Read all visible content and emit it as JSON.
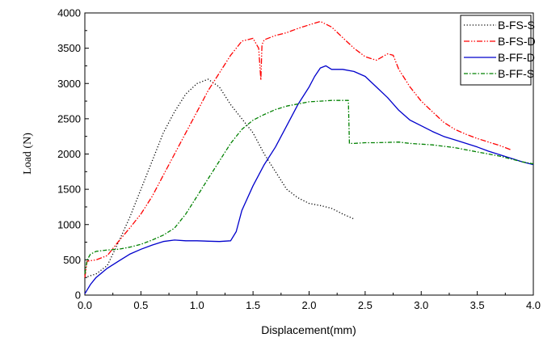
{
  "chart_data": {
    "type": "line",
    "xlabel": "Displacement(mm)",
    "ylabel": "Load (N)",
    "xlim": [
      0,
      4.0
    ],
    "ylim": [
      0,
      4000
    ],
    "x_ticks": [
      "0.0",
      "0.5",
      "1.0",
      "1.5",
      "2.0",
      "2.5",
      "3.0",
      "3.5",
      "4.0"
    ],
    "y_ticks": [
      "0",
      "500",
      "1000",
      "1500",
      "2000",
      "2500",
      "3000",
      "3500",
      "4000"
    ],
    "grid": false,
    "legend_position": "top-right",
    "series": [
      {
        "name": "B-FS-S",
        "color": "#000000",
        "dash": "1.2 2.4",
        "points": [
          [
            0.0,
            250
          ],
          [
            0.1,
            300
          ],
          [
            0.2,
            420
          ],
          [
            0.3,
            750
          ],
          [
            0.4,
            1100
          ],
          [
            0.5,
            1500
          ],
          [
            0.6,
            1900
          ],
          [
            0.7,
            2300
          ],
          [
            0.8,
            2600
          ],
          [
            0.9,
            2850
          ],
          [
            1.0,
            3000
          ],
          [
            1.1,
            3060
          ],
          [
            1.2,
            2950
          ],
          [
            1.3,
            2700
          ],
          [
            1.4,
            2500
          ],
          [
            1.5,
            2300
          ],
          [
            1.6,
            2000
          ],
          [
            1.7,
            1750
          ],
          [
            1.8,
            1500
          ],
          [
            1.9,
            1380
          ],
          [
            2.0,
            1300
          ],
          [
            2.1,
            1270
          ],
          [
            2.2,
            1230
          ],
          [
            2.3,
            1150
          ],
          [
            2.4,
            1080
          ]
        ]
      },
      {
        "name": "B-FS-D",
        "color": "#ff0000",
        "dash": "7 2 1.5 2 1.5 2",
        "points": [
          [
            0.0,
            250
          ],
          [
            0.02,
            480
          ],
          [
            0.1,
            500
          ],
          [
            0.2,
            560
          ],
          [
            0.3,
            760
          ],
          [
            0.4,
            950
          ],
          [
            0.5,
            1150
          ],
          [
            0.6,
            1400
          ],
          [
            0.7,
            1700
          ],
          [
            0.8,
            2000
          ],
          [
            0.9,
            2300
          ],
          [
            1.0,
            2600
          ],
          [
            1.1,
            2900
          ],
          [
            1.2,
            3150
          ],
          [
            1.3,
            3400
          ],
          [
            1.4,
            3600
          ],
          [
            1.5,
            3640
          ],
          [
            1.55,
            3500
          ],
          [
            1.57,
            3050
          ],
          [
            1.58,
            3550
          ],
          [
            1.6,
            3620
          ],
          [
            1.7,
            3680
          ],
          [
            1.8,
            3720
          ],
          [
            1.9,
            3780
          ],
          [
            2.0,
            3830
          ],
          [
            2.1,
            3880
          ],
          [
            2.2,
            3800
          ],
          [
            2.3,
            3650
          ],
          [
            2.4,
            3500
          ],
          [
            2.5,
            3380
          ],
          [
            2.6,
            3330
          ],
          [
            2.7,
            3420
          ],
          [
            2.75,
            3400
          ],
          [
            2.8,
            3200
          ],
          [
            2.9,
            2950
          ],
          [
            3.0,
            2750
          ],
          [
            3.1,
            2600
          ],
          [
            3.2,
            2450
          ],
          [
            3.3,
            2350
          ],
          [
            3.4,
            2280
          ],
          [
            3.5,
            2220
          ],
          [
            3.6,
            2170
          ],
          [
            3.7,
            2120
          ],
          [
            3.8,
            2060
          ]
        ]
      },
      {
        "name": "B-FF-D",
        "color": "#0000cc",
        "dash": "",
        "points": [
          [
            0.0,
            20
          ],
          [
            0.05,
            150
          ],
          [
            0.1,
            250
          ],
          [
            0.2,
            380
          ],
          [
            0.3,
            480
          ],
          [
            0.4,
            580
          ],
          [
            0.5,
            650
          ],
          [
            0.6,
            710
          ],
          [
            0.7,
            760
          ],
          [
            0.8,
            780
          ],
          [
            0.9,
            770
          ],
          [
            1.0,
            770
          ],
          [
            1.1,
            765
          ],
          [
            1.2,
            760
          ],
          [
            1.3,
            770
          ],
          [
            1.35,
            900
          ],
          [
            1.4,
            1200
          ],
          [
            1.5,
            1550
          ],
          [
            1.6,
            1850
          ],
          [
            1.7,
            2100
          ],
          [
            1.8,
            2400
          ],
          [
            1.9,
            2700
          ],
          [
            2.0,
            2950
          ],
          [
            2.05,
            3100
          ],
          [
            2.1,
            3220
          ],
          [
            2.15,
            3250
          ],
          [
            2.2,
            3200
          ],
          [
            2.3,
            3200
          ],
          [
            2.4,
            3170
          ],
          [
            2.5,
            3100
          ],
          [
            2.6,
            2950
          ],
          [
            2.7,
            2800
          ],
          [
            2.8,
            2620
          ],
          [
            2.9,
            2480
          ],
          [
            3.0,
            2400
          ],
          [
            3.1,
            2320
          ],
          [
            3.2,
            2250
          ],
          [
            3.3,
            2200
          ],
          [
            3.4,
            2150
          ],
          [
            3.5,
            2100
          ],
          [
            3.6,
            2040
          ],
          [
            3.7,
            1990
          ],
          [
            3.8,
            1940
          ],
          [
            3.9,
            1890
          ],
          [
            4.0,
            1850
          ]
        ]
      },
      {
        "name": "B-FF-S",
        "color": "#008000",
        "dash": "5 2 1.5 2",
        "points": [
          [
            0.0,
            300
          ],
          [
            0.02,
            500
          ],
          [
            0.05,
            580
          ],
          [
            0.1,
            620
          ],
          [
            0.2,
            640
          ],
          [
            0.3,
            650
          ],
          [
            0.4,
            680
          ],
          [
            0.5,
            720
          ],
          [
            0.6,
            780
          ],
          [
            0.7,
            850
          ],
          [
            0.8,
            950
          ],
          [
            0.9,
            1150
          ],
          [
            1.0,
            1400
          ],
          [
            1.1,
            1650
          ],
          [
            1.2,
            1900
          ],
          [
            1.3,
            2150
          ],
          [
            1.4,
            2350
          ],
          [
            1.5,
            2480
          ],
          [
            1.6,
            2560
          ],
          [
            1.7,
            2630
          ],
          [
            1.8,
            2680
          ],
          [
            1.9,
            2710
          ],
          [
            2.0,
            2740
          ],
          [
            2.1,
            2750
          ],
          [
            2.2,
            2760
          ],
          [
            2.3,
            2760
          ],
          [
            2.35,
            2760
          ],
          [
            2.36,
            2150
          ],
          [
            2.4,
            2150
          ],
          [
            2.5,
            2160
          ],
          [
            2.6,
            2160
          ],
          [
            2.7,
            2165
          ],
          [
            2.8,
            2170
          ],
          [
            2.9,
            2150
          ],
          [
            3.0,
            2140
          ],
          [
            3.1,
            2130
          ],
          [
            3.2,
            2110
          ],
          [
            3.3,
            2090
          ],
          [
            3.4,
            2060
          ],
          [
            3.5,
            2030
          ],
          [
            3.6,
            2000
          ],
          [
            3.7,
            1970
          ],
          [
            3.8,
            1930
          ],
          [
            3.9,
            1890
          ],
          [
            4.0,
            1860
          ]
        ]
      }
    ]
  }
}
